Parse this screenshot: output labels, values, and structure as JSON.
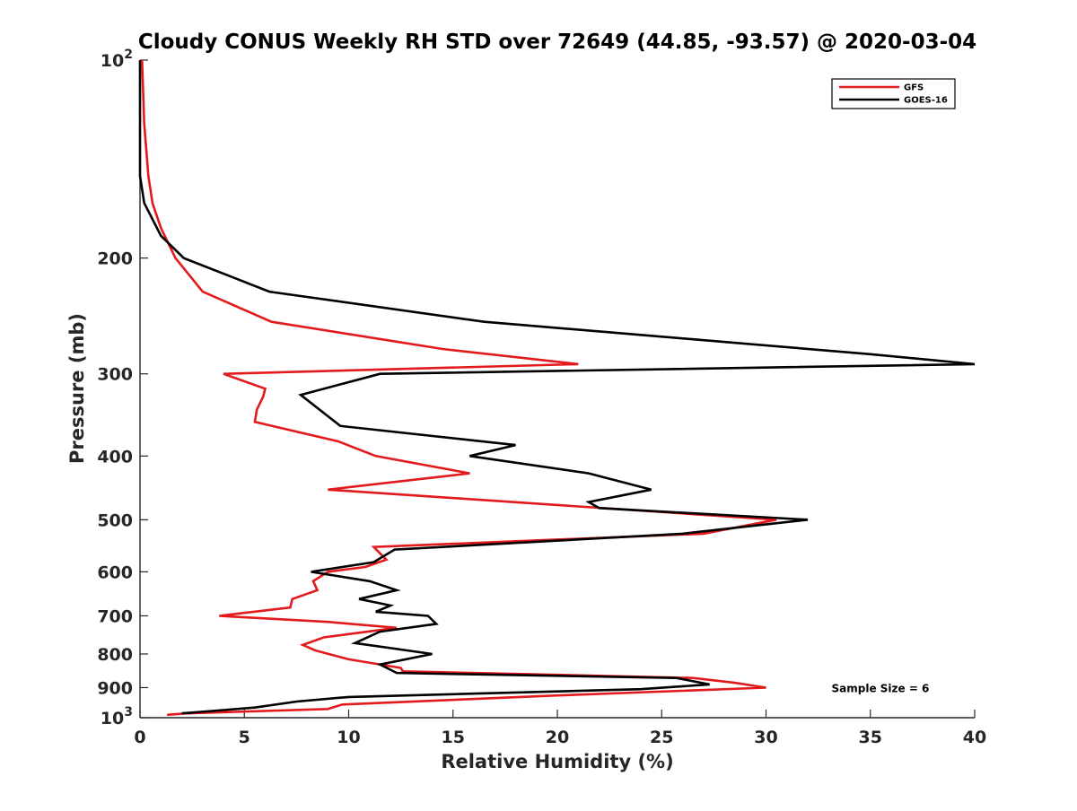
{
  "chart_data": {
    "type": "line",
    "title": "Cloudy CONUS Weekly RH STD over 72649 (44.85, -93.57) @ 2020-03-04",
    "xlabel": "Relative Humidity (%)",
    "ylabel": "Pressure (mb)",
    "xlim": [
      0,
      40
    ],
    "ylim": [
      100,
      1000
    ],
    "yscale": "log",
    "y_reversed": true,
    "grid": false,
    "legend_position": "top-right",
    "x_ticks": [
      {
        "value": 0,
        "label": "0"
      },
      {
        "value": 5,
        "label": "5"
      },
      {
        "value": 10,
        "label": "10"
      },
      {
        "value": 15,
        "label": "15"
      },
      {
        "value": 20,
        "label": "20"
      },
      {
        "value": 25,
        "label": "25"
      },
      {
        "value": 30,
        "label": "30"
      },
      {
        "value": 35,
        "label": "35"
      },
      {
        "value": 40,
        "label": "40"
      }
    ],
    "y_ticks": [
      {
        "value": 100,
        "base": "10",
        "exp": "2"
      },
      {
        "value": 200,
        "label": "200"
      },
      {
        "value": 300,
        "label": "300"
      },
      {
        "value": 400,
        "label": "400"
      },
      {
        "value": 500,
        "label": "500"
      },
      {
        "value": 600,
        "label": "600"
      },
      {
        "value": 700,
        "label": "700"
      },
      {
        "value": 800,
        "label": "800"
      },
      {
        "value": 900,
        "label": "900"
      },
      {
        "value": 1000,
        "base": "10",
        "exp": "3"
      }
    ],
    "series": [
      {
        "name": "GFS",
        "color": "#e31a1c",
        "points": [
          [
            0.1,
            100
          ],
          [
            0.2,
            125
          ],
          [
            0.4,
            150
          ],
          [
            0.6,
            165
          ],
          [
            1.0,
            180
          ],
          [
            1.7,
            200
          ],
          [
            3.0,
            225
          ],
          [
            6.3,
            250
          ],
          [
            14.5,
            275
          ],
          [
            21.0,
            290
          ],
          [
            4.0,
            300
          ],
          [
            6.0,
            316
          ],
          [
            5.9,
            325
          ],
          [
            5.6,
            340
          ],
          [
            5.5,
            355
          ],
          [
            9.5,
            380
          ],
          [
            11.3,
            400
          ],
          [
            15.8,
            425
          ],
          [
            9.0,
            450
          ],
          [
            30.5,
            500
          ],
          [
            27.0,
            525
          ],
          [
            11.2,
            550
          ],
          [
            11.8,
            575
          ],
          [
            10.8,
            590
          ],
          [
            9.0,
            600
          ],
          [
            8.3,
            620
          ],
          [
            8.5,
            640
          ],
          [
            7.3,
            660
          ],
          [
            7.2,
            680
          ],
          [
            3.8,
            700
          ],
          [
            9.0,
            715
          ],
          [
            12.3,
            730
          ],
          [
            8.8,
            755
          ],
          [
            7.8,
            775
          ],
          [
            8.4,
            790
          ],
          [
            10.0,
            815
          ],
          [
            12.5,
            840
          ],
          [
            12.6,
            850
          ],
          [
            26.5,
            870
          ],
          [
            28.5,
            885
          ],
          [
            30.0,
            900
          ],
          [
            20.0,
            925
          ],
          [
            9.7,
            955
          ],
          [
            9.0,
            970
          ],
          [
            2.2,
            985
          ],
          [
            1.3,
            990
          ]
        ]
      },
      {
        "name": "GOES-16",
        "color": "#000000",
        "points": [
          [
            0.0,
            100
          ],
          [
            0.0,
            125
          ],
          [
            0.0,
            150
          ],
          [
            0.2,
            165
          ],
          [
            1.0,
            185
          ],
          [
            2.1,
            200
          ],
          [
            6.2,
            225
          ],
          [
            16.5,
            250
          ],
          [
            35.0,
            280
          ],
          [
            40.0,
            290
          ],
          [
            11.5,
            300
          ],
          [
            7.7,
            323
          ],
          [
            9.6,
            360
          ],
          [
            18.0,
            385
          ],
          [
            15.8,
            400
          ],
          [
            21.5,
            425
          ],
          [
            24.5,
            450
          ],
          [
            21.5,
            470
          ],
          [
            22.0,
            480
          ],
          [
            32.0,
            500
          ],
          [
            26.0,
            525
          ],
          [
            12.2,
            555
          ],
          [
            11.2,
            580
          ],
          [
            8.2,
            600
          ],
          [
            11.0,
            620
          ],
          [
            12.3,
            640
          ],
          [
            10.5,
            660
          ],
          [
            12.0,
            675
          ],
          [
            11.3,
            690
          ],
          [
            13.8,
            700
          ],
          [
            14.2,
            720
          ],
          [
            11.5,
            740
          ],
          [
            10.3,
            770
          ],
          [
            12.8,
            790
          ],
          [
            14.0,
            800
          ],
          [
            11.5,
            830
          ],
          [
            12.3,
            855
          ],
          [
            25.7,
            870
          ],
          [
            27.3,
            890
          ],
          [
            24.0,
            905
          ],
          [
            10.0,
            930
          ],
          [
            7.5,
            945
          ],
          [
            5.5,
            965
          ],
          [
            2.0,
            985
          ]
        ]
      }
    ],
    "annotations": [
      {
        "text": "Sample Size = 6",
        "x": 34.0,
        "y": 900
      }
    ]
  }
}
